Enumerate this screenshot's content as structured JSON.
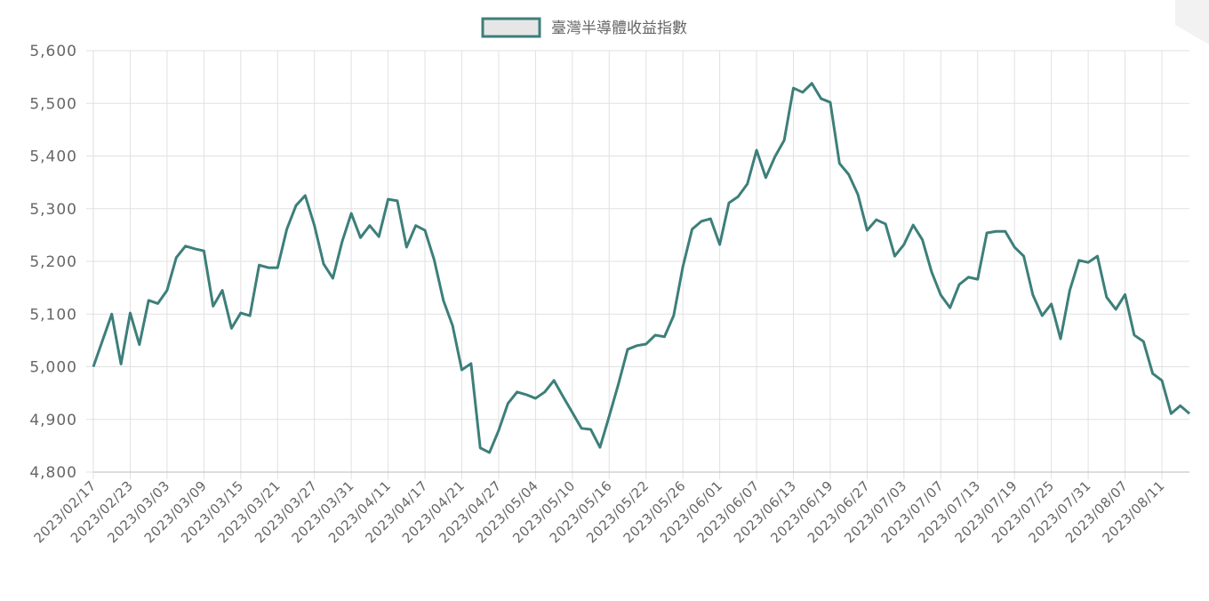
{
  "chart_data": {
    "type": "line",
    "legend_position": "top",
    "categories": [
      "2023/02/17",
      null,
      null,
      null,
      "2023/02/23",
      null,
      null,
      null,
      "2023/03/03",
      null,
      null,
      null,
      "2023/03/09",
      null,
      null,
      null,
      "2023/03/15",
      null,
      null,
      null,
      "2023/03/21",
      null,
      null,
      null,
      "2023/03/27",
      null,
      null,
      null,
      "2023/03/31",
      null,
      null,
      null,
      "2023/04/11",
      null,
      null,
      null,
      "2023/04/17",
      null,
      null,
      null,
      "2023/04/21",
      null,
      null,
      null,
      "2023/04/27",
      null,
      null,
      null,
      "2023/05/04",
      null,
      null,
      null,
      "2023/05/10",
      null,
      null,
      null,
      "2023/05/16",
      null,
      null,
      null,
      "2023/05/22",
      null,
      null,
      null,
      "2023/05/26",
      null,
      null,
      null,
      "2023/06/01",
      null,
      null,
      null,
      "2023/06/07",
      null,
      null,
      null,
      "2023/06/13",
      null,
      null,
      null,
      "2023/06/19",
      null,
      null,
      null,
      "2023/06/27",
      null,
      null,
      null,
      "2023/07/03",
      null,
      null,
      null,
      "2023/07/07",
      null,
      null,
      null,
      "2023/07/13",
      null,
      null,
      null,
      "2023/07/19",
      null,
      null,
      null,
      "2023/07/25",
      null,
      null,
      null,
      "2023/07/31",
      null,
      null,
      null,
      "2023/08/07",
      null,
      null,
      null,
      "2023/08/11",
      null,
      null,
      null
    ],
    "series": [
      {
        "name": "臺灣半導體收益指數",
        "color": "#3d7f7a",
        "values": [
          5000,
          5050,
          5100,
          5005,
          5102,
          5042,
          5126,
          5120,
          5145,
          5207,
          5229,
          5224,
          5220,
          5115,
          5145,
          5073,
          5102,
          5097,
          5193,
          5188,
          5188,
          5261,
          5306,
          5325,
          5268,
          5195,
          5168,
          5237,
          5291,
          5245,
          5268,
          5247,
          5318,
          5315,
          5227,
          5268,
          5259,
          5203,
          5126,
          5078,
          4994,
          5006,
          4846,
          4837,
          4879,
          4930,
          4952,
          4947,
          4940,
          4952,
          4974,
          4943,
          4913,
          4883,
          4881,
          4847,
          4906,
          4967,
          5033,
          5040,
          5043,
          5060,
          5057,
          5097,
          5190,
          5261,
          5276,
          5281,
          5232,
          5311,
          5323,
          5347,
          5411,
          5359,
          5399,
          5430,
          5529,
          5521,
          5538,
          5509,
          5502,
          5386,
          5365,
          5327,
          5259,
          5279,
          5271,
          5210,
          5232,
          5269,
          5241,
          5180,
          5136,
          5112,
          5156,
          5170,
          5166,
          5254,
          5257,
          5257,
          5227,
          5210,
          5136,
          5097,
          5119,
          5053,
          5145,
          5202,
          5198,
          5210,
          5132,
          5109,
          5137,
          5060,
          5048,
          4987,
          4974,
          4911,
          4926,
          4911
        ]
      }
    ],
    "ylim": [
      4800,
      5600
    ],
    "yticks": [
      {
        "value": 4800,
        "label": "4,800"
      },
      {
        "value": 4900,
        "label": "4,900"
      },
      {
        "value": 5000,
        "label": "5,000"
      },
      {
        "value": 5100,
        "label": "5,100"
      },
      {
        "value": 5200,
        "label": "5,200"
      },
      {
        "value": 5300,
        "label": "5,300"
      },
      {
        "value": 5400,
        "label": "5,400"
      },
      {
        "value": 5500,
        "label": "5,500"
      },
      {
        "value": 5600,
        "label": "5,600"
      }
    ],
    "grid": true
  }
}
